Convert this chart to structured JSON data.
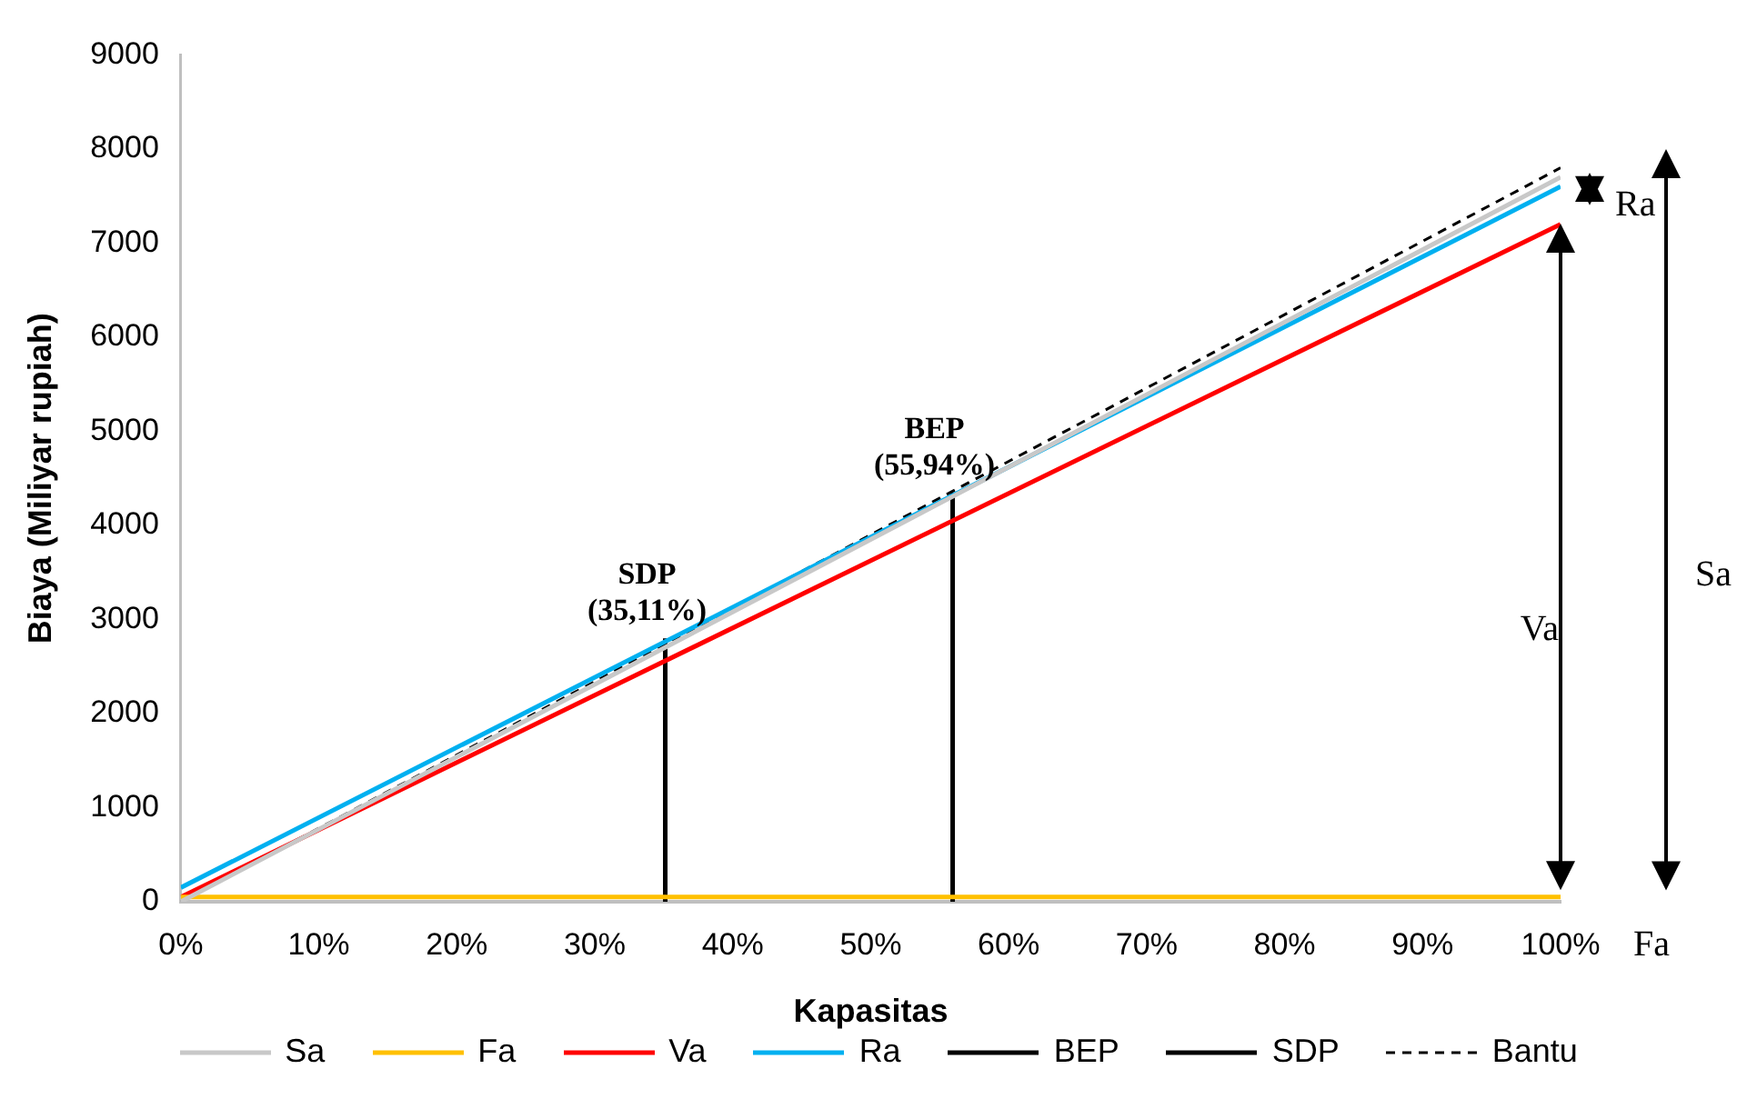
{
  "chart_data": {
    "type": "line",
    "xlabel": "Kapasitas",
    "ylabel": "Biaya (Miliyar rupiah)",
    "xlim": [
      0,
      100
    ],
    "ylim": [
      0,
      9000
    ],
    "xticks": [
      {
        "value": 0,
        "label": "0%"
      },
      {
        "value": 10,
        "label": "10%"
      },
      {
        "value": 20,
        "label": "20%"
      },
      {
        "value": 30,
        "label": "30%"
      },
      {
        "value": 40,
        "label": "40%"
      },
      {
        "value": 50,
        "label": "50%"
      },
      {
        "value": 60,
        "label": "60%"
      },
      {
        "value": 70,
        "label": "70%"
      },
      {
        "value": 80,
        "label": "80%"
      },
      {
        "value": 90,
        "label": "90%"
      },
      {
        "value": 100,
        "label": "100%"
      }
    ],
    "yticks": [
      0,
      1000,
      2000,
      3000,
      4000,
      5000,
      6000,
      7000,
      8000,
      9000
    ],
    "grid": false,
    "legend": "bottom",
    "marker": "none",
    "series": [
      {
        "name": "Sa",
        "color": "#c8c8c8",
        "x": [
          0,
          100
        ],
        "values": [
          0,
          7700
        ]
      },
      {
        "name": "Fa",
        "color": "#ffc000",
        "x": [
          0,
          100
        ],
        "values": [
          50,
          50
        ]
      },
      {
        "name": "Va",
        "color": "#ff0000",
        "x": [
          0,
          100
        ],
        "values": [
          50,
          7200
        ]
      },
      {
        "name": "Ra",
        "color": "#00b0f0",
        "x": [
          0,
          100
        ],
        "values": [
          150,
          7600
        ]
      },
      {
        "name": "BEP",
        "color": "#000000",
        "x": [
          55.94,
          55.94
        ],
        "values": [
          0,
          4350
        ]
      },
      {
        "name": "SDP",
        "color": "#000000",
        "x": [
          35.11,
          35.11
        ],
        "values": [
          0,
          2800
        ]
      },
      {
        "name": "Bantu",
        "color": "#000000",
        "x": [
          0,
          100
        ],
        "values": [
          0,
          7800
        ],
        "line_style": "dashed"
      }
    ],
    "annotations": [
      {
        "text": "SDP (35,11%)",
        "x": 35.11,
        "y": 2800
      },
      {
        "text": "BEP (55,94%)",
        "x": 55.94,
        "y": 4350
      },
      "Ra",
      "Va",
      "Sa",
      "Fa"
    ]
  }
}
